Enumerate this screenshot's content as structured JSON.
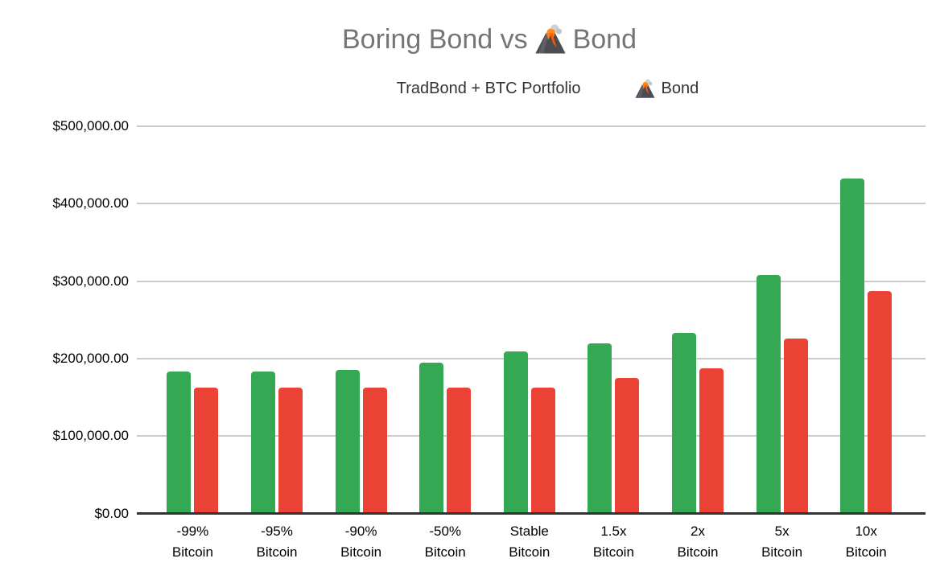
{
  "title": {
    "prefix": "Boring Bond vs",
    "suffix": "Bond",
    "full_text": "Boring Bond vs 🌋 Bond"
  },
  "legend": {
    "position": "top",
    "volcano_bond_suffix": "Bond"
  },
  "chart_data": {
    "type": "bar",
    "title": "Boring Bond vs 🌋 Bond",
    "categories": [
      "-99%\nBitcoin",
      "-95%\nBitcoin",
      "-90%\nBitcoin",
      "-50%\nBitcoin",
      "Stable\nBitcoin",
      "1.5x\nBitcoin",
      "2x\nBitcoin",
      "5x\nBitcoin",
      "10x\nBitcoin"
    ],
    "series": [
      {
        "name": "TradBond + BTC Portfolio",
        "color": "#34A853",
        "values": [
          183000,
          183000,
          185000,
          195000,
          209000,
          220000,
          233000,
          308000,
          433000
        ]
      },
      {
        "name": "🌋 Bond",
        "color": "#EA4335",
        "values": [
          163000,
          163000,
          163000,
          163000,
          163000,
          175000,
          187000,
          226000,
          287000
        ]
      }
    ],
    "y_ticks": [
      {
        "value": 500000,
        "label": "$500,000.00"
      },
      {
        "value": 400000,
        "label": "$400,000.00"
      },
      {
        "value": 300000,
        "label": "$300,000.00"
      },
      {
        "value": 200000,
        "label": "$200,000.00"
      },
      {
        "value": 100000,
        "label": "$100,000.00"
      },
      {
        "value": 0,
        "label": "$0.00"
      }
    ],
    "ylim": [
      0,
      500000
    ],
    "xlabel": "",
    "ylabel": "",
    "grid": true,
    "legend_position": "top",
    "colors": {
      "series_green": "#34A853",
      "series_red": "#EA4335",
      "title_text": "#757575",
      "axis_text": "#000000",
      "gridline": "#cccccc",
      "axis_line": "#333333",
      "background": "#ffffff"
    }
  }
}
